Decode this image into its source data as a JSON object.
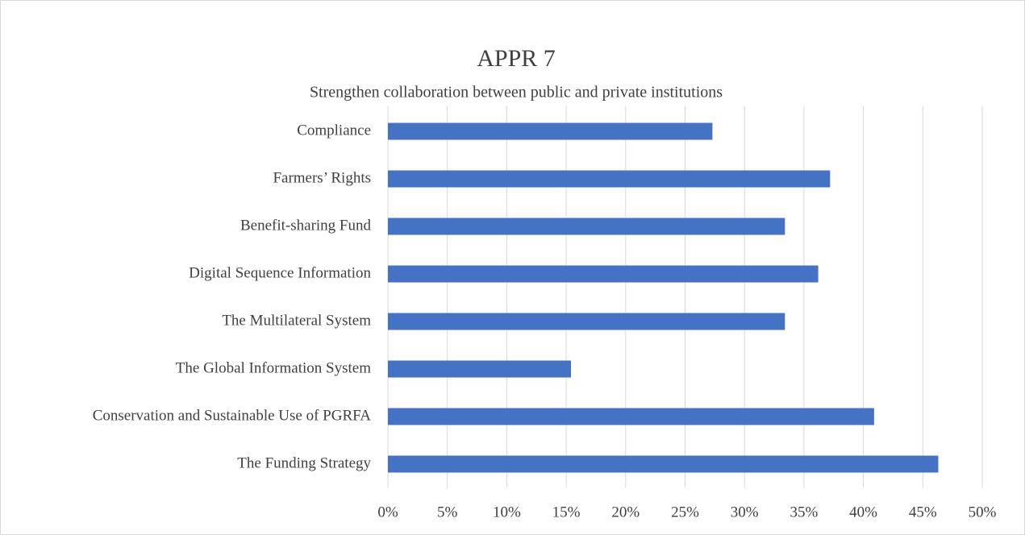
{
  "chart_data": {
    "type": "bar",
    "orientation": "horizontal",
    "title": "APPR 7",
    "subtitle": "Strengthen collaboration between public and private institutions",
    "categories": [
      "Compliance",
      "Farmers’ Rights",
      "Benefit-sharing Fund",
      "Digital Sequence Information",
      "The Multilateral System",
      "The Global Information System",
      "Conservation and Sustainable Use of PGRFA",
      "The Funding Strategy"
    ],
    "values": [
      27.3,
      37.2,
      33.4,
      36.2,
      33.4,
      15.4,
      40.9,
      46.3
    ],
    "color": "#4472c4",
    "xlim": [
      0,
      50
    ],
    "xticks": [
      {
        "value": 0,
        "label": "0%"
      },
      {
        "value": 5,
        "label": "5%"
      },
      {
        "value": 10,
        "label": "10%"
      },
      {
        "value": 15,
        "label": "15%"
      },
      {
        "value": 20,
        "label": "20%"
      },
      {
        "value": 25,
        "label": "25%"
      },
      {
        "value": 30,
        "label": "30%"
      },
      {
        "value": 35,
        "label": "35%"
      },
      {
        "value": 40,
        "label": "40%"
      },
      {
        "value": 45,
        "label": "45%"
      },
      {
        "value": 50,
        "label": "50%"
      }
    ],
    "grid": true
  }
}
